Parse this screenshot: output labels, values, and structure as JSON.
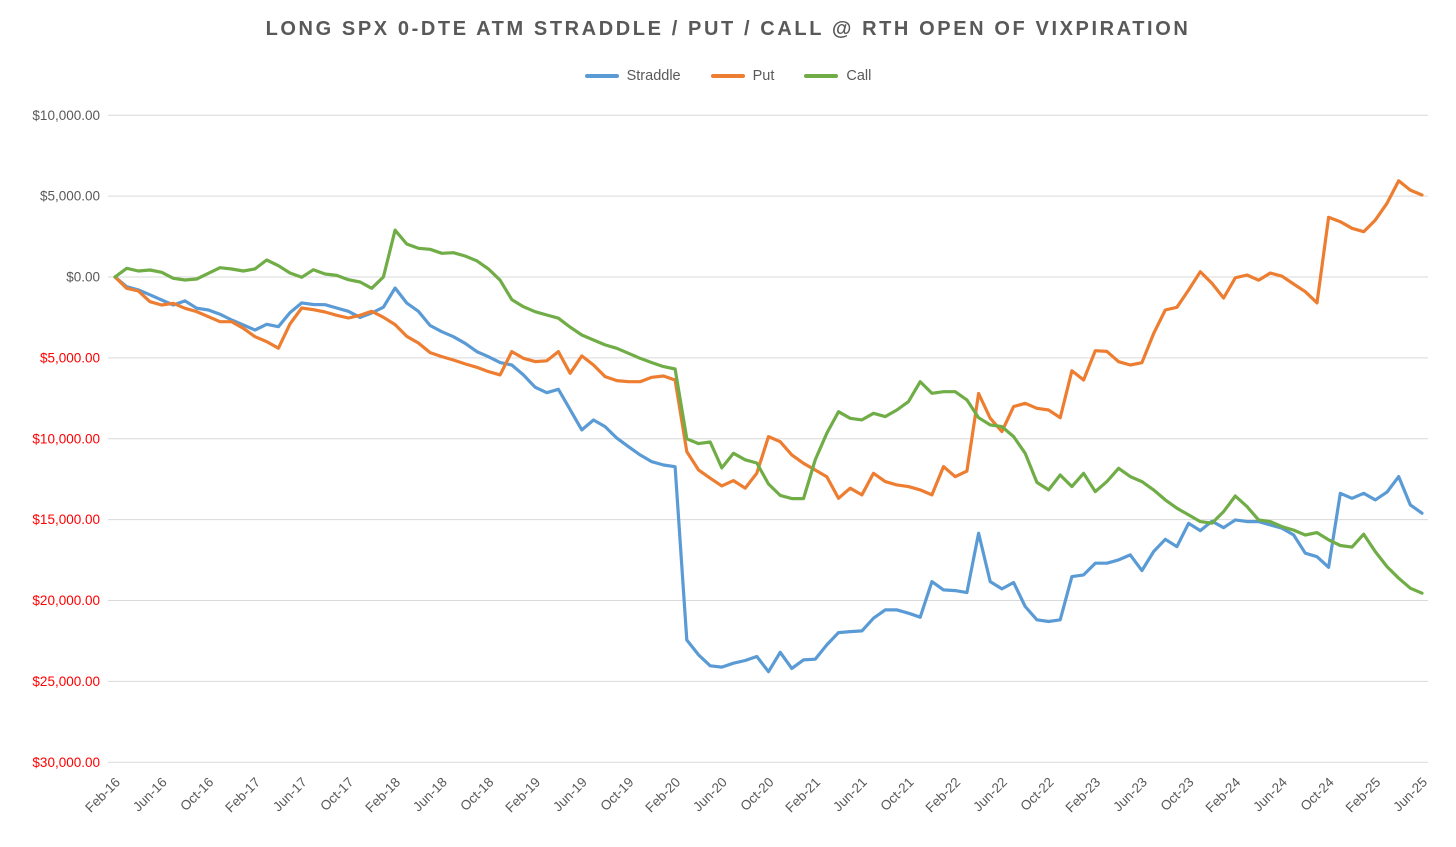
{
  "page": {
    "background": "#FFFFFF"
  },
  "chart_data": {
    "type": "line",
    "title": "LONG SPX 0-DTE ATM STRADDLE / PUT / CALL @ RTH OPEN OF VIXPIRATION",
    "legend_position": "top",
    "grid": true,
    "colors": {
      "grid": "#D9D9D9",
      "text": "#595959",
      "negative_tick": "#FF0000"
    },
    "y_axis": {
      "min": -30000,
      "max": 10000,
      "step": 5000,
      "tick_format": "$#,##0.00",
      "tick_color": "#595959",
      "negative_tick_color": "#FF0000"
    },
    "x_axis": {
      "tick_every": 4,
      "tick_color": "#595959",
      "label_rotation": -45
    },
    "categories": [
      "Feb-16",
      "Mar-16",
      "Apr-16",
      "May-16",
      "Jun-16",
      "Jul-16",
      "Aug-16",
      "Sep-16",
      "Oct-16",
      "Nov-16",
      "Dec-16",
      "Jan-17",
      "Feb-17",
      "Mar-17",
      "Apr-17",
      "May-17",
      "Jun-17",
      "Jul-17",
      "Aug-17",
      "Sep-17",
      "Oct-17",
      "Nov-17",
      "Dec-17",
      "Jan-18",
      "Feb-18",
      "Mar-18",
      "Apr-18",
      "May-18",
      "Jun-18",
      "Jul-18",
      "Aug-18",
      "Sep-18",
      "Oct-18",
      "Nov-18",
      "Dec-18",
      "Jan-19",
      "Feb-19",
      "Mar-19",
      "Apr-19",
      "May-19",
      "Jun-19",
      "Jul-19",
      "Aug-19",
      "Sep-19",
      "Oct-19",
      "Nov-19",
      "Dec-19",
      "Jan-20",
      "Feb-20",
      "Mar-20",
      "Apr-20",
      "May-20",
      "Jun-20",
      "Jul-20",
      "Aug-20",
      "Sep-20",
      "Oct-20",
      "Nov-20",
      "Dec-20",
      "Jan-21",
      "Feb-21",
      "Mar-21",
      "Apr-21",
      "May-21",
      "Jun-21",
      "Jul-21",
      "Aug-21",
      "Sep-21",
      "Oct-21",
      "Nov-21",
      "Dec-21",
      "Jan-22",
      "Feb-22",
      "Mar-22",
      "Apr-22",
      "May-22",
      "Jun-22",
      "Jul-22",
      "Aug-22",
      "Sep-22",
      "Oct-22",
      "Nov-22",
      "Dec-22",
      "Jan-23",
      "Feb-23",
      "Mar-23",
      "Apr-23",
      "May-23",
      "Jun-23",
      "Jul-23",
      "Aug-23",
      "Sep-23",
      "Oct-23",
      "Nov-23",
      "Dec-23",
      "Jan-24",
      "Feb-24",
      "Mar-24",
      "Apr-24",
      "May-24",
      "Jun-24",
      "Jul-24",
      "Aug-24",
      "Sep-24",
      "Oct-24",
      "Nov-24",
      "Dec-24",
      "Jan-25",
      "Feb-25",
      "Mar-25",
      "Apr-25",
      "May-25",
      "Jun-25"
    ],
    "series": [
      {
        "name": "Straddle",
        "color": "#5B9BD5",
        "values": [
          0,
          -600,
          -800,
          -1100,
          -1420,
          -1730,
          -1480,
          -1930,
          -2040,
          -2300,
          -2660,
          -2970,
          -3275,
          -2925,
          -3070,
          -2200,
          -1600,
          -1700,
          -1710,
          -1915,
          -2120,
          -2500,
          -2225,
          -1870,
          -680,
          -1605,
          -2120,
          -3000,
          -3380,
          -3690,
          -4100,
          -4615,
          -4925,
          -5295,
          -5440,
          -6055,
          -6815,
          -7150,
          -6940,
          -8200,
          -9450,
          -8840,
          -9250,
          -9960,
          -10490,
          -11000,
          -11420,
          -11620,
          -11730,
          -22440,
          -23360,
          -24040,
          -24120,
          -23875,
          -23710,
          -23465,
          -24400,
          -23200,
          -24200,
          -23670,
          -23630,
          -22745,
          -21985,
          -21925,
          -21880,
          -21095,
          -20580,
          -20580,
          -20785,
          -21030,
          -18830,
          -19345,
          -19385,
          -19510,
          -15840,
          -18830,
          -19280,
          -18890,
          -20370,
          -21195,
          -21300,
          -21195,
          -18520,
          -18415,
          -17695,
          -17695,
          -17490,
          -17180,
          -18150,
          -16975,
          -16215,
          -16670,
          -15225,
          -15680,
          -15100,
          -15500,
          -15015,
          -15120,
          -15120,
          -15325,
          -15530,
          -15945,
          -17075,
          -17290,
          -17945,
          -13370,
          -13680,
          -13370,
          -13780,
          -13300,
          -12340,
          -14090,
          -14605
        ]
      },
      {
        "name": "Put",
        "color": "#ED7D31",
        "values": [
          0,
          -700,
          -865,
          -1525,
          -1730,
          -1625,
          -1935,
          -2140,
          -2455,
          -2765,
          -2765,
          -3170,
          -3690,
          -3995,
          -4400,
          -2900,
          -1915,
          -2020,
          -2165,
          -2370,
          -2535,
          -2370,
          -2120,
          -2490,
          -2945,
          -3665,
          -4080,
          -4675,
          -4920,
          -5130,
          -5375,
          -5580,
          -5850,
          -6055,
          -4615,
          -5025,
          -5230,
          -5180,
          -4615,
          -5955,
          -4880,
          -5440,
          -6160,
          -6405,
          -6470,
          -6470,
          -6200,
          -6120,
          -6365,
          -10795,
          -11925,
          -12440,
          -12915,
          -12585,
          -13060,
          -12130,
          -9870,
          -10180,
          -11000,
          -11515,
          -11930,
          -12345,
          -13680,
          -13060,
          -13470,
          -12135,
          -12650,
          -12855,
          -12960,
          -13165,
          -13470,
          -11720,
          -12345,
          -12000,
          -7200,
          -8730,
          -9560,
          -8015,
          -7810,
          -8120,
          -8220,
          -8700,
          -5800,
          -6365,
          -4555,
          -4600,
          -5235,
          -5440,
          -5300,
          -3500,
          -2040,
          -1875,
          -805,
          330,
          -390,
          -1300,
          -50,
          125,
          -200,
          250,
          50,
          -430,
          -910,
          -1600,
          3690,
          3420,
          3010,
          2800,
          3520,
          4555,
          5950,
          5375,
          5070
        ]
      },
      {
        "name": "Call",
        "color": "#70AD47",
        "values": [
          0,
          535,
          370,
          430,
          290,
          -80,
          -185,
          -125,
          230,
          575,
          495,
          370,
          500,
          1050,
          700,
          245,
          -20,
          450,
          185,
          100,
          -165,
          -310,
          -700,
          0,
          2900,
          2040,
          1775,
          1710,
          1465,
          1500,
          1300,
          1000,
          500,
          -200,
          -1400,
          -1835,
          -2145,
          -2350,
          -2550,
          -3100,
          -3585,
          -3895,
          -4200,
          -4405,
          -4715,
          -5025,
          -5295,
          -5540,
          -5685,
          -10000,
          -10300,
          -10200,
          -11800,
          -10900,
          -11300,
          -11500,
          -12800,
          -13500,
          -13700,
          -13700,
          -11310,
          -9660,
          -8325,
          -8735,
          -8835,
          -8425,
          -8630,
          -8220,
          -7705,
          -6470,
          -7190,
          -7090,
          -7090,
          -7600,
          -8700,
          -9145,
          -9250,
          -9870,
          -10900,
          -12700,
          -13165,
          -12240,
          -12960,
          -12135,
          -13270,
          -12650,
          -11825,
          -12340,
          -12650,
          -13165,
          -13780,
          -14295,
          -14710,
          -15120,
          -15220,
          -14505,
          -13540,
          -14195,
          -15015,
          -15120,
          -15430,
          -15650,
          -15950,
          -15800,
          -16250,
          -16600,
          -16700,
          -15900,
          -16975,
          -17905,
          -18620,
          -19240,
          -19550
        ]
      }
    ]
  }
}
